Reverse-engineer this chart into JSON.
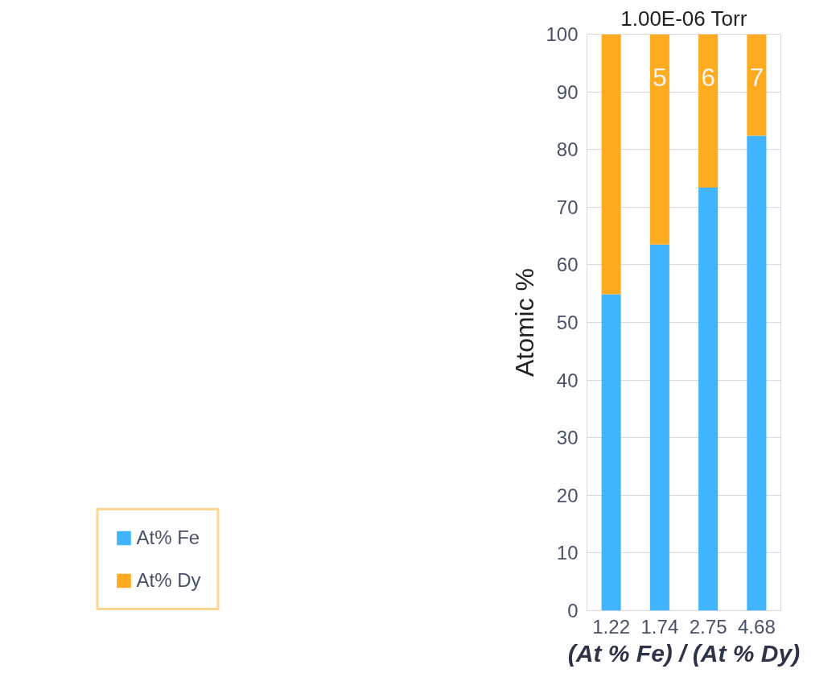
{
  "chart_data": {
    "type": "bar",
    "stacked": true,
    "title": "1.00E-06 Torr",
    "xlabel": "(At % Fe) / (At % Dy)",
    "ylabel": "Atomic %",
    "categories": [
      "1.22",
      "1.74",
      "2.75",
      "4.68"
    ],
    "series": [
      {
        "name": "At% Fe",
        "color": "#41b4fe",
        "values": [
          54.9,
          63.5,
          73.4,
          82.4
        ]
      },
      {
        "name": "At% Dy",
        "color": "#feab1f",
        "values": [
          45.1,
          36.5,
          26.6,
          17.6
        ]
      }
    ],
    "ylim": [
      0,
      100
    ],
    "yticks": [
      0,
      10,
      20,
      30,
      40,
      50,
      60,
      70,
      80,
      90,
      100
    ],
    "grid": "y",
    "legend": "bottom left",
    "annotations": [
      "5",
      "6",
      "7"
    ]
  }
}
